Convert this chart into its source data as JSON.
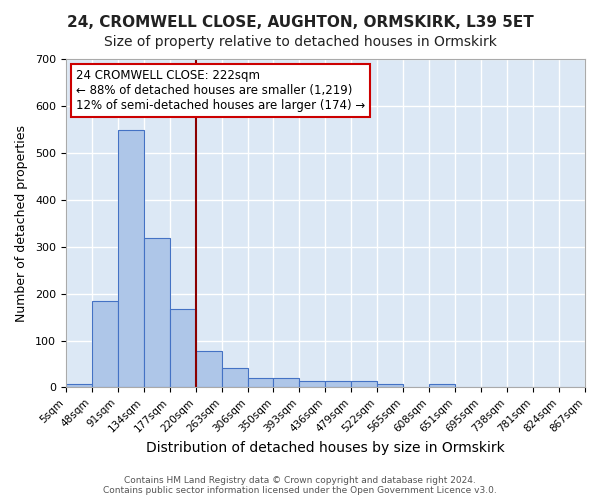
{
  "title": "24, CROMWELL CLOSE, AUGHTON, ORMSKIRK, L39 5ET",
  "subtitle": "Size of property relative to detached houses in Ormskirk",
  "xlabel": "Distribution of detached houses by size in Ormskirk",
  "ylabel": "Number of detached properties",
  "bar_values": [
    8,
    185,
    548,
    318,
    168,
    78,
    42,
    20,
    20,
    13,
    14,
    14,
    8,
    0,
    8,
    0,
    0,
    0,
    0,
    0
  ],
  "bar_labels": [
    "5sqm",
    "48sqm",
    "91sqm",
    "134sqm",
    "177sqm",
    "220sqm",
    "263sqm",
    "306sqm",
    "350sqm",
    "393sqm",
    "436sqm",
    "479sqm",
    "522sqm",
    "565sqm",
    "608sqm",
    "651sqm",
    "695sqm",
    "738sqm",
    "781sqm",
    "824sqm"
  ],
  "extra_label": "867sqm",
  "bar_color": "#aec6e8",
  "bar_edge_color": "#4472c4",
  "bar_width": 1.0,
  "vline_color": "#8b0000",
  "ylim": [
    0,
    700
  ],
  "yticks": [
    0,
    100,
    200,
    300,
    400,
    500,
    600,
    700
  ],
  "annotation_box_text": "24 CROMWELL CLOSE: 222sqm\n← 88% of detached houses are smaller (1,219)\n12% of semi-detached houses are larger (174) →",
  "annotation_fontsize": 8.5,
  "bg_color": "#dce8f5",
  "grid_color": "#ffffff",
  "footer_text": "Contains HM Land Registry data © Crown copyright and database right 2024.\nContains public sector information licensed under the Open Government Licence v3.0.",
  "title_fontsize": 11,
  "subtitle_fontsize": 10,
  "xlabel_fontsize": 10,
  "ylabel_fontsize": 9
}
